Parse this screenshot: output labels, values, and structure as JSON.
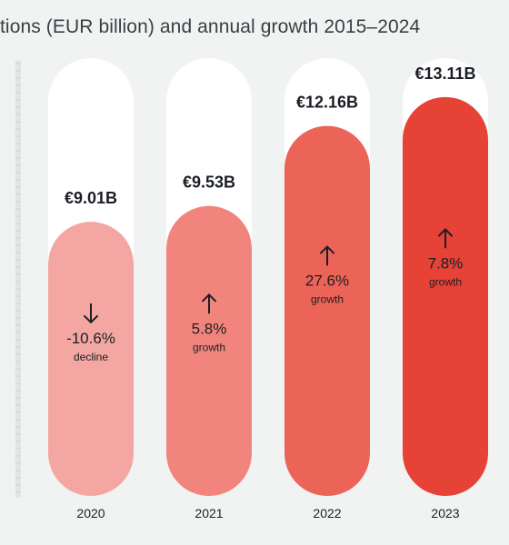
{
  "chart_data": {
    "type": "bar",
    "title": "tions (EUR billion) and annual growth 2015–2024",
    "categories": [
      "2020",
      "2021",
      "2022",
      "2023"
    ],
    "values": [
      9.01,
      9.53,
      12.16,
      13.11
    ],
    "value_labels": [
      "€9.01B",
      "€9.53B",
      "€12.16B",
      "€13.11B"
    ],
    "growth": [
      {
        "value_label": "-10.6%",
        "caption": "decline",
        "direction": "down"
      },
      {
        "value_label": "5.8%",
        "caption": "growth",
        "direction": "up"
      },
      {
        "value_label": "27.6%",
        "caption": "growth",
        "direction": "up"
      },
      {
        "value_label": "7.8%",
        "caption": "growth",
        "direction": "up"
      }
    ],
    "ylim": [
      0,
      15
    ],
    "xlabel": "",
    "ylabel": "",
    "grid": false,
    "legend": "none",
    "colors": {
      "track": "#ffffff",
      "bars": [
        "#f4a7a2",
        "#f1857e",
        "#ec6357",
        "#e64236"
      ],
      "text": "#1b1f24",
      "background": "#f1f2f2"
    }
  }
}
